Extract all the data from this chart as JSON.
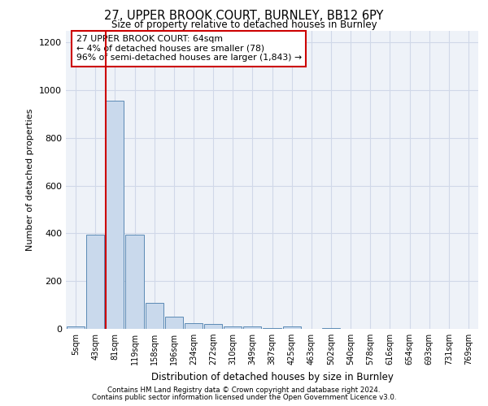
{
  "title1": "27, UPPER BROOK COURT, BURNLEY, BB12 6PY",
  "title2": "Size of property relative to detached houses in Burnley",
  "xlabel": "Distribution of detached houses by size in Burnley",
  "ylabel": "Number of detached properties",
  "categories": [
    "5sqm",
    "43sqm",
    "81sqm",
    "119sqm",
    "158sqm",
    "196sqm",
    "234sqm",
    "272sqm",
    "310sqm",
    "349sqm",
    "387sqm",
    "425sqm",
    "463sqm",
    "502sqm",
    "540sqm",
    "578sqm",
    "616sqm",
    "654sqm",
    "693sqm",
    "731sqm",
    "769sqm"
  ],
  "values": [
    10,
    395,
    955,
    395,
    110,
    50,
    25,
    20,
    10,
    10,
    5,
    10,
    0,
    5,
    0,
    0,
    0,
    0,
    0,
    0,
    0
  ],
  "bar_color": "#c9d9ec",
  "bar_edge_color": "#5b8ab5",
  "vline_color": "#cc0000",
  "annotation_text": "27 UPPER BROOK COURT: 64sqm\n← 4% of detached houses are smaller (78)\n96% of semi-detached houses are larger (1,843) →",
  "annotation_box_color": "#ffffff",
  "annotation_box_edge": "#cc0000",
  "ylim": [
    0,
    1250
  ],
  "yticks": [
    0,
    200,
    400,
    600,
    800,
    1000,
    1200
  ],
  "grid_color": "#d0d8e8",
  "bg_color": "#eef2f8",
  "footer1": "Contains HM Land Registry data © Crown copyright and database right 2024.",
  "footer2": "Contains public sector information licensed under the Open Government Licence v3.0."
}
